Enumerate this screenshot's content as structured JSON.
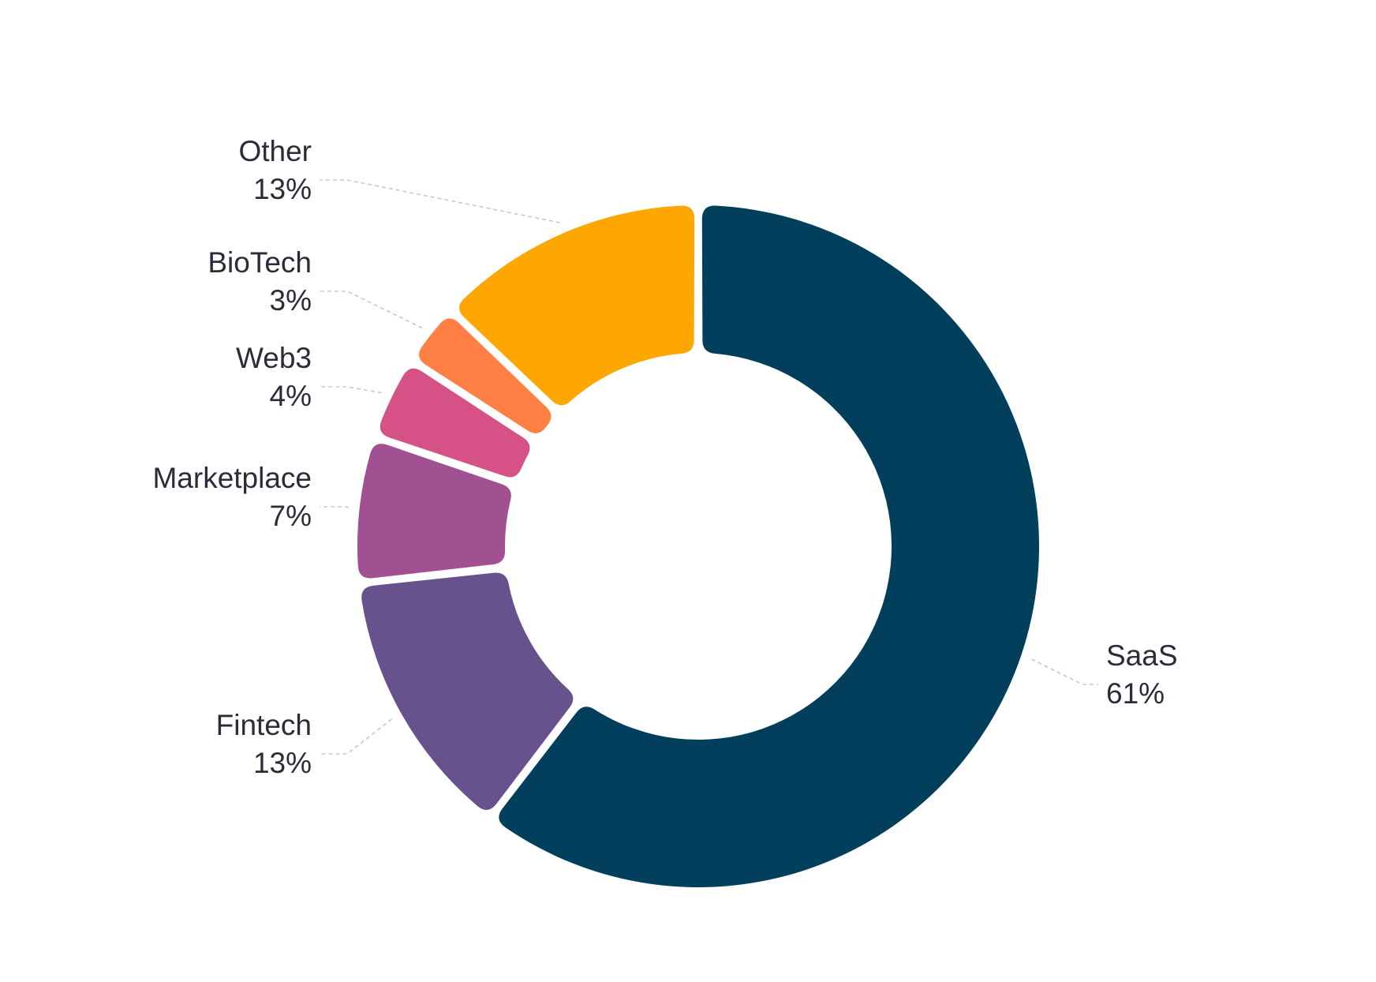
{
  "chart_data": {
    "type": "pie",
    "variant": "donut",
    "title": "",
    "slices": [
      {
        "label": "SaaS",
        "value": 61,
        "value_label": "61%",
        "color": "#013F5C"
      },
      {
        "label": "Fintech",
        "value": 13,
        "value_label": "13%",
        "color": "#67528E"
      },
      {
        "label": "Marketplace",
        "value": 7,
        "value_label": "7%",
        "color": "#A15092"
      },
      {
        "label": "Web3",
        "value": 4,
        "value_label": "4%",
        "color": "#D55186"
      },
      {
        "label": "BioTech",
        "value": 3,
        "value_label": "3%",
        "color": "#FF7F45"
      },
      {
        "label": "Other",
        "value": 13,
        "value_label": "13%",
        "color": "#FEA602"
      }
    ],
    "start": "12 o'clock",
    "direction": "clockwise",
    "legend": "none",
    "labels": "outside with dashed leader lines"
  }
}
